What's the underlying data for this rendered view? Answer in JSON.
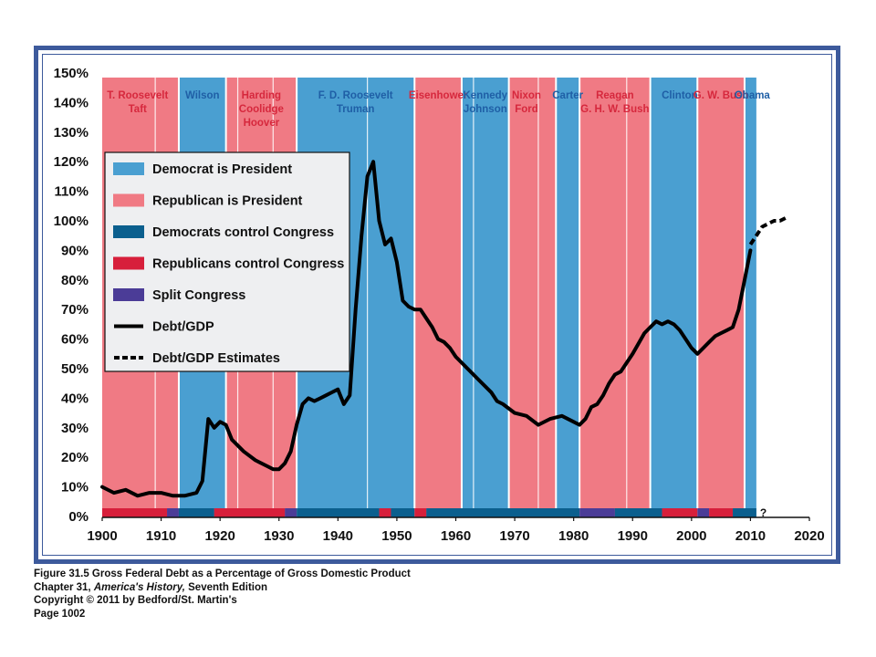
{
  "chart_data": {
    "type": "line",
    "title": "",
    "xlabel": "",
    "ylabel": "",
    "xlim": [
      1900,
      2020
    ],
    "ylim": [
      0,
      150
    ],
    "x_ticks": [
      "1900",
      "1910",
      "1920",
      "1930",
      "1940",
      "1950",
      "1960",
      "1970",
      "1980",
      "1990",
      "2000",
      "2010",
      "2020"
    ],
    "y_ticks": [
      "0%",
      "10%",
      "20%",
      "30%",
      "40%",
      "50%",
      "60%",
      "70%",
      "80%",
      "90%",
      "100%",
      "110%",
      "120%",
      "130%",
      "140%",
      "150%"
    ],
    "question_mark": "?",
    "colors": {
      "democrat_president": "#4a9fd1",
      "republican_president": "#f07a84",
      "democrat_congress": "#0b5f8e",
      "republican_congress": "#d71f3b",
      "split_congress": "#4b3c97",
      "debt_line": "#000000"
    },
    "legend": [
      {
        "label": "Democrat is President",
        "kind": "democrat_president"
      },
      {
        "label": "Republican is President",
        "kind": "republican_president"
      },
      {
        "label": "Democrats control Congress",
        "kind": "democrat_congress"
      },
      {
        "label": "Republicans control Congress",
        "kind": "republican_congress"
      },
      {
        "label": "Split Congress",
        "kind": "split_congress"
      },
      {
        "label": "Debt/GDP",
        "kind": "line_solid"
      },
      {
        "label": "Debt/GDP Estimates",
        "kind": "line_dashed"
      }
    ],
    "presidencies": [
      {
        "start": 1900,
        "end": 1913,
        "party": "R",
        "labels": [
          "T. Roosevelt",
          "Taft"
        ]
      },
      {
        "start": 1913,
        "end": 1921,
        "party": "D",
        "labels": [
          "Wilson"
        ]
      },
      {
        "start": 1921,
        "end": 1933,
        "party": "R",
        "labels": [
          "Harding",
          "Coolidge",
          "Hoover"
        ]
      },
      {
        "start": 1933,
        "end": 1953,
        "party": "D",
        "labels": [
          "F. D. Roosevelt",
          "Truman"
        ]
      },
      {
        "start": 1953,
        "end": 1961,
        "party": "R",
        "labels": [
          "Eisenhower"
        ]
      },
      {
        "start": 1961,
        "end": 1969,
        "party": "D",
        "labels": [
          "Kennedy",
          "Johnson"
        ]
      },
      {
        "start": 1969,
        "end": 1977,
        "party": "R",
        "labels": [
          "Nixon",
          "Ford"
        ]
      },
      {
        "start": 1977,
        "end": 1981,
        "party": "D",
        "labels": [
          "Carter"
        ]
      },
      {
        "start": 1981,
        "end": 1993,
        "party": "R",
        "labels": [
          "Reagan",
          "G. H. W. Bush"
        ]
      },
      {
        "start": 1993,
        "end": 2001,
        "party": "D",
        "labels": [
          "Clinton"
        ]
      },
      {
        "start": 2001,
        "end": 2009,
        "party": "R",
        "labels": [
          "G. W. Bush"
        ]
      },
      {
        "start": 2009,
        "end": 2011,
        "party": "D",
        "labels": [
          "Obama"
        ]
      }
    ],
    "term_dividers": [
      1909,
      1923,
      1929,
      1945,
      1963,
      1974,
      1989
    ],
    "congress": [
      {
        "start": 1900,
        "end": 1911,
        "control": "R"
      },
      {
        "start": 1911,
        "end": 1913,
        "control": "split"
      },
      {
        "start": 1913,
        "end": 1919,
        "control": "D"
      },
      {
        "start": 1919,
        "end": 1931,
        "control": "R"
      },
      {
        "start": 1931,
        "end": 1933,
        "control": "split"
      },
      {
        "start": 1933,
        "end": 1947,
        "control": "D"
      },
      {
        "start": 1947,
        "end": 1949,
        "control": "R"
      },
      {
        "start": 1949,
        "end": 1953,
        "control": "D"
      },
      {
        "start": 1953,
        "end": 1955,
        "control": "R"
      },
      {
        "start": 1955,
        "end": 1981,
        "control": "D"
      },
      {
        "start": 1981,
        "end": 1987,
        "control": "split"
      },
      {
        "start": 1987,
        "end": 1995,
        "control": "D"
      },
      {
        "start": 1995,
        "end": 2001,
        "control": "R"
      },
      {
        "start": 2001,
        "end": 2003,
        "control": "split"
      },
      {
        "start": 2003,
        "end": 2007,
        "control": "R"
      },
      {
        "start": 2007,
        "end": 2011,
        "control": "D"
      }
    ],
    "series": [
      {
        "name": "Debt/GDP",
        "style": "solid",
        "x": [
          1900,
          1902,
          1904,
          1906,
          1908,
          1910,
          1912,
          1914,
          1916,
          1917,
          1918,
          1919,
          1920,
          1921,
          1922,
          1923,
          1924,
          1926,
          1928,
          1929,
          1930,
          1931,
          1932,
          1933,
          1934,
          1935,
          1936,
          1937,
          1938,
          1939,
          1940,
          1941,
          1942,
          1943,
          1944,
          1945,
          1946,
          1947,
          1948,
          1949,
          1950,
          1951,
          1952,
          1953,
          1954,
          1955,
          1956,
          1957,
          1958,
          1959,
          1960,
          1962,
          1964,
          1966,
          1967,
          1968,
          1970,
          1972,
          1974,
          1976,
          1978,
          1980,
          1981,
          1982,
          1983,
          1984,
          1985,
          1986,
          1987,
          1988,
          1990,
          1992,
          1993,
          1994,
          1995,
          1996,
          1997,
          1998,
          1999,
          2000,
          2001,
          2002,
          2003,
          2004,
          2005,
          2006,
          2007,
          2008,
          2009,
          2010
        ],
        "y": [
          10,
          8,
          9,
          7,
          8,
          8,
          7,
          7,
          8,
          12,
          33,
          30,
          32,
          31,
          26,
          24,
          22,
          19,
          17,
          16,
          16,
          18,
          22,
          31,
          38,
          40,
          39,
          40,
          41,
          42,
          43,
          38,
          41,
          70,
          95,
          115,
          120,
          100,
          92,
          94,
          86,
          73,
          71,
          70,
          70,
          67,
          64,
          60,
          59,
          57,
          54,
          50,
          46,
          42,
          39,
          38,
          35,
          34,
          31,
          33,
          34,
          32,
          31,
          33,
          37,
          38,
          41,
          45,
          48,
          49,
          55,
          62,
          64,
          66,
          65,
          66,
          65,
          63,
          60,
          57,
          55,
          57,
          59,
          61,
          62,
          63,
          64,
          70,
          80,
          90
        ]
      },
      {
        "name": "Debt/GDP Estimates",
        "style": "dashed",
        "x": [
          2010,
          2011,
          2012,
          2013,
          2014,
          2015,
          2016
        ],
        "y": [
          92,
          95,
          98,
          99,
          100,
          100,
          101
        ]
      }
    ]
  },
  "caption": {
    "line1": "Figure 31.5 Gross Federal Debt as a Percentage of Gross Domestic Product",
    "line2_prefix": "Chapter 31, ",
    "line2_italic": "America's History,",
    "line2_suffix": " Seventh Edition",
    "line3": "Copyright © 2011 by Bedford/St. Martin's",
    "line4": "Page 1002"
  }
}
